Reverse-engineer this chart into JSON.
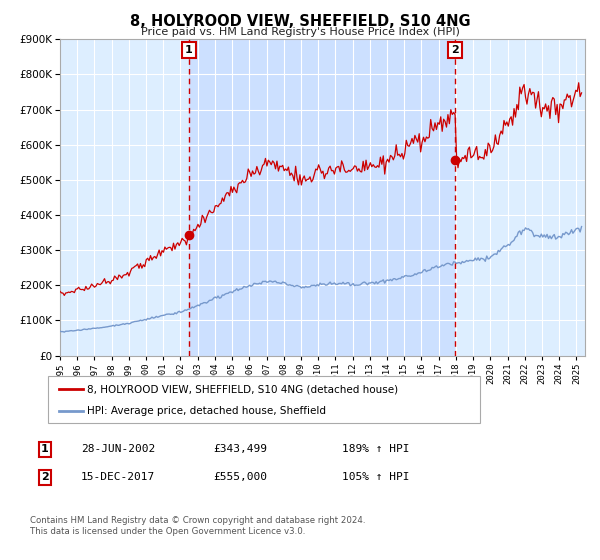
{
  "title": "8, HOLYROOD VIEW, SHEFFIELD, S10 4NG",
  "subtitle": "Price paid vs. HM Land Registry's House Price Index (HPI)",
  "legend_line1": "8, HOLYROOD VIEW, SHEFFIELD, S10 4NG (detached house)",
  "legend_line2": "HPI: Average price, detached house, Sheffield",
  "footer1": "Contains HM Land Registry data © Crown copyright and database right 2024.",
  "footer2": "This data is licensed under the Open Government Licence v3.0.",
  "sale1_date": "28-JUN-2002",
  "sale1_price": "£343,499",
  "sale1_hpi": "189% ↑ HPI",
  "sale2_date": "15-DEC-2017",
  "sale2_price": "£555,000",
  "sale2_hpi": "105% ↑ HPI",
  "red_color": "#cc0000",
  "blue_color": "#7799cc",
  "shade_color": "#cce0ff",
  "background_color": "#ddeeff",
  "grid_color": "#ffffff",
  "ylim": [
    0,
    900000
  ],
  "xmin": 1995.0,
  "xmax": 2025.5,
  "marker1_x": 2002.49,
  "marker1_y": 343499,
  "marker2_x": 2017.96,
  "marker2_y": 555000,
  "vline1_x": 2002.49,
  "vline2_x": 2017.96
}
